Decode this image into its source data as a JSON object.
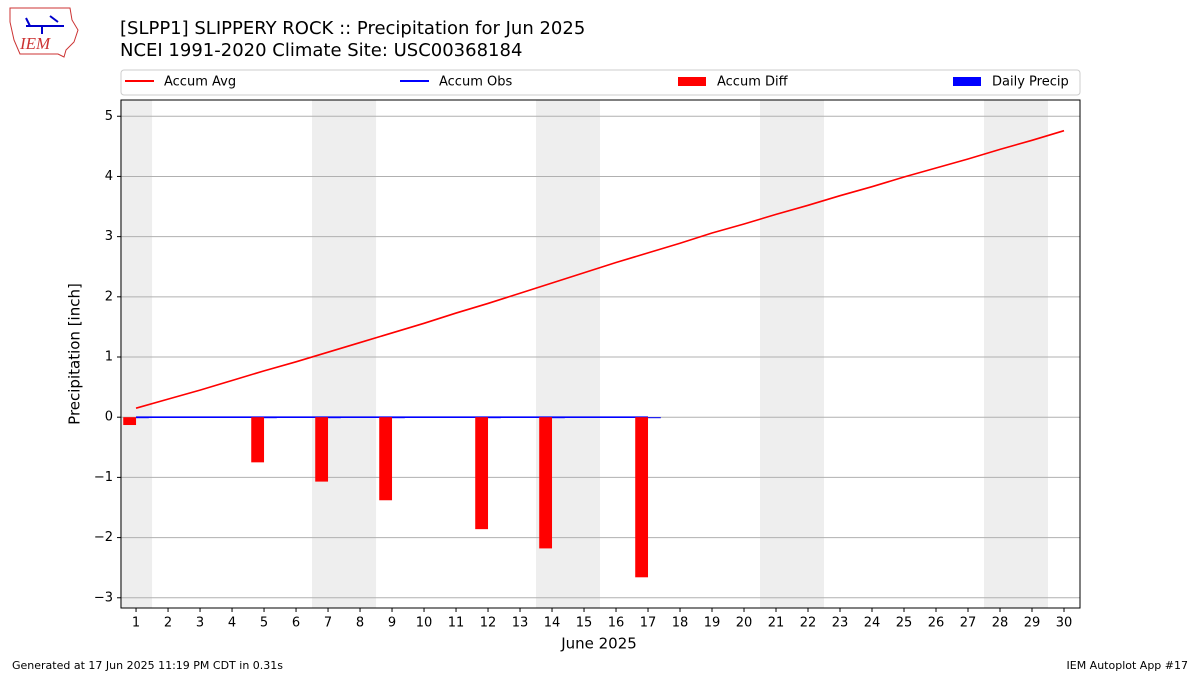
{
  "logo_text": "IEM",
  "footer_left": "Generated at 17 Jun 2025 11:19 PM CDT in 0.31s",
  "footer_right": "IEM Autoplot App #17",
  "chart_data": {
    "type": "combo",
    "title": "[SLPP1] SLIPPERY ROCK :: Precipitation for Jun 2025",
    "subtitle": "NCEI 1991-2020 Climate Site: USC00368184",
    "xlabel": "June 2025",
    "ylabel": "Precipitation [inch]",
    "xlim": [
      0.53,
      30.5
    ],
    "ylim": [
      -3.17,
      5.27
    ],
    "xticks": [
      1,
      2,
      3,
      4,
      5,
      6,
      7,
      8,
      9,
      10,
      11,
      12,
      13,
      14,
      15,
      16,
      17,
      18,
      19,
      20,
      21,
      22,
      23,
      24,
      25,
      26,
      27,
      28,
      29,
      30
    ],
    "yticks": [
      {
        "value": -3,
        "label": "−3"
      },
      {
        "value": -2,
        "label": "−2"
      },
      {
        "value": -1,
        "label": "−1"
      },
      0,
      1,
      2,
      3,
      4,
      5
    ],
    "grid": true,
    "weekend_spans": [
      [
        0.5,
        1.5
      ],
      [
        6.5,
        8.5
      ],
      [
        13.5,
        15.5
      ],
      [
        20.5,
        22.5
      ],
      [
        27.5,
        29.5
      ]
    ],
    "series": [
      {
        "name": "Accum Avg",
        "color": "#ff0000",
        "kind": "line",
        "x": [
          1,
          2,
          3,
          4,
          5,
          6,
          7,
          8,
          9,
          10,
          11,
          12,
          13,
          14,
          15,
          16,
          17,
          18,
          19,
          20,
          21,
          22,
          23,
          24,
          25,
          26,
          27,
          28,
          29,
          30
        ],
        "values": [
          0.15,
          0.3,
          0.45,
          0.61,
          0.77,
          0.92,
          1.08,
          1.24,
          1.4,
          1.56,
          1.73,
          1.89,
          2.06,
          2.23,
          2.4,
          2.57,
          2.73,
          2.89,
          3.06,
          3.21,
          3.37,
          3.52,
          3.68,
          3.83,
          3.99,
          4.14,
          4.29,
          4.45,
          4.6,
          4.76
        ]
      },
      {
        "name": "Accum Obs",
        "color": "#0000ff",
        "kind": "line",
        "x": [
          1,
          5,
          7,
          9,
          12,
          14,
          17
        ],
        "values": [
          0,
          0,
          0,
          0,
          0,
          0,
          0
        ]
      },
      {
        "name": "Accum Diff",
        "color": "#ff0000",
        "kind": "bar",
        "x": [
          1,
          5,
          7,
          9,
          12,
          14,
          17
        ],
        "values": [
          -0.13,
          -0.75,
          -1.07,
          -1.38,
          -1.86,
          -2.18,
          -2.66
        ]
      },
      {
        "name": "Daily Precip",
        "color": "#0000ff",
        "kind": "bar",
        "x": [
          1,
          5,
          7,
          9,
          12,
          14,
          17
        ],
        "values": [
          0,
          0,
          0,
          0,
          0,
          0,
          0
        ]
      }
    ]
  }
}
